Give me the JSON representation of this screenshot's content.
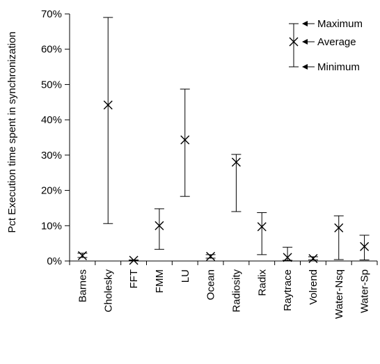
{
  "chart_data": {
    "type": "errorbar",
    "title": "",
    "xlabel": "",
    "ylabel": "Pct Execution time spent in synchronization",
    "ylim": [
      0,
      70
    ],
    "yticks": [
      0,
      10,
      20,
      30,
      40,
      50,
      60,
      70
    ],
    "ytick_labels": [
      "0%",
      "10%",
      "20%",
      "30%",
      "40%",
      "50%",
      "60%",
      "70%"
    ],
    "grid": false,
    "categories": [
      "Barnes",
      "Cholesky",
      "FFT",
      "FMM",
      "LU",
      "Ocean",
      "Radiosity",
      "Radix",
      "Raytrace",
      "Volrend",
      "Water-Nsq",
      "Water-Sp"
    ],
    "series": [
      {
        "name": "Maximum",
        "values": [
          2.2,
          69.0,
          0.3,
          14.8,
          48.7,
          1.8,
          30.2,
          13.7,
          3.9,
          1.2,
          12.8,
          7.3
        ]
      },
      {
        "name": "Average",
        "values": [
          1.5,
          44.2,
          0.2,
          10.0,
          34.3,
          1.3,
          28.0,
          9.7,
          1.0,
          0.7,
          9.4,
          4.1
        ]
      },
      {
        "name": "Minimum",
        "values": [
          1.0,
          10.6,
          0.1,
          3.3,
          18.3,
          0.8,
          14.0,
          1.8,
          0.2,
          0.3,
          0.4,
          0.3
        ]
      }
    ],
    "legend": {
      "position": "top-right",
      "labels": {
        "max": "Maximum",
        "avg": "Average",
        "min": "Minimum"
      }
    }
  }
}
